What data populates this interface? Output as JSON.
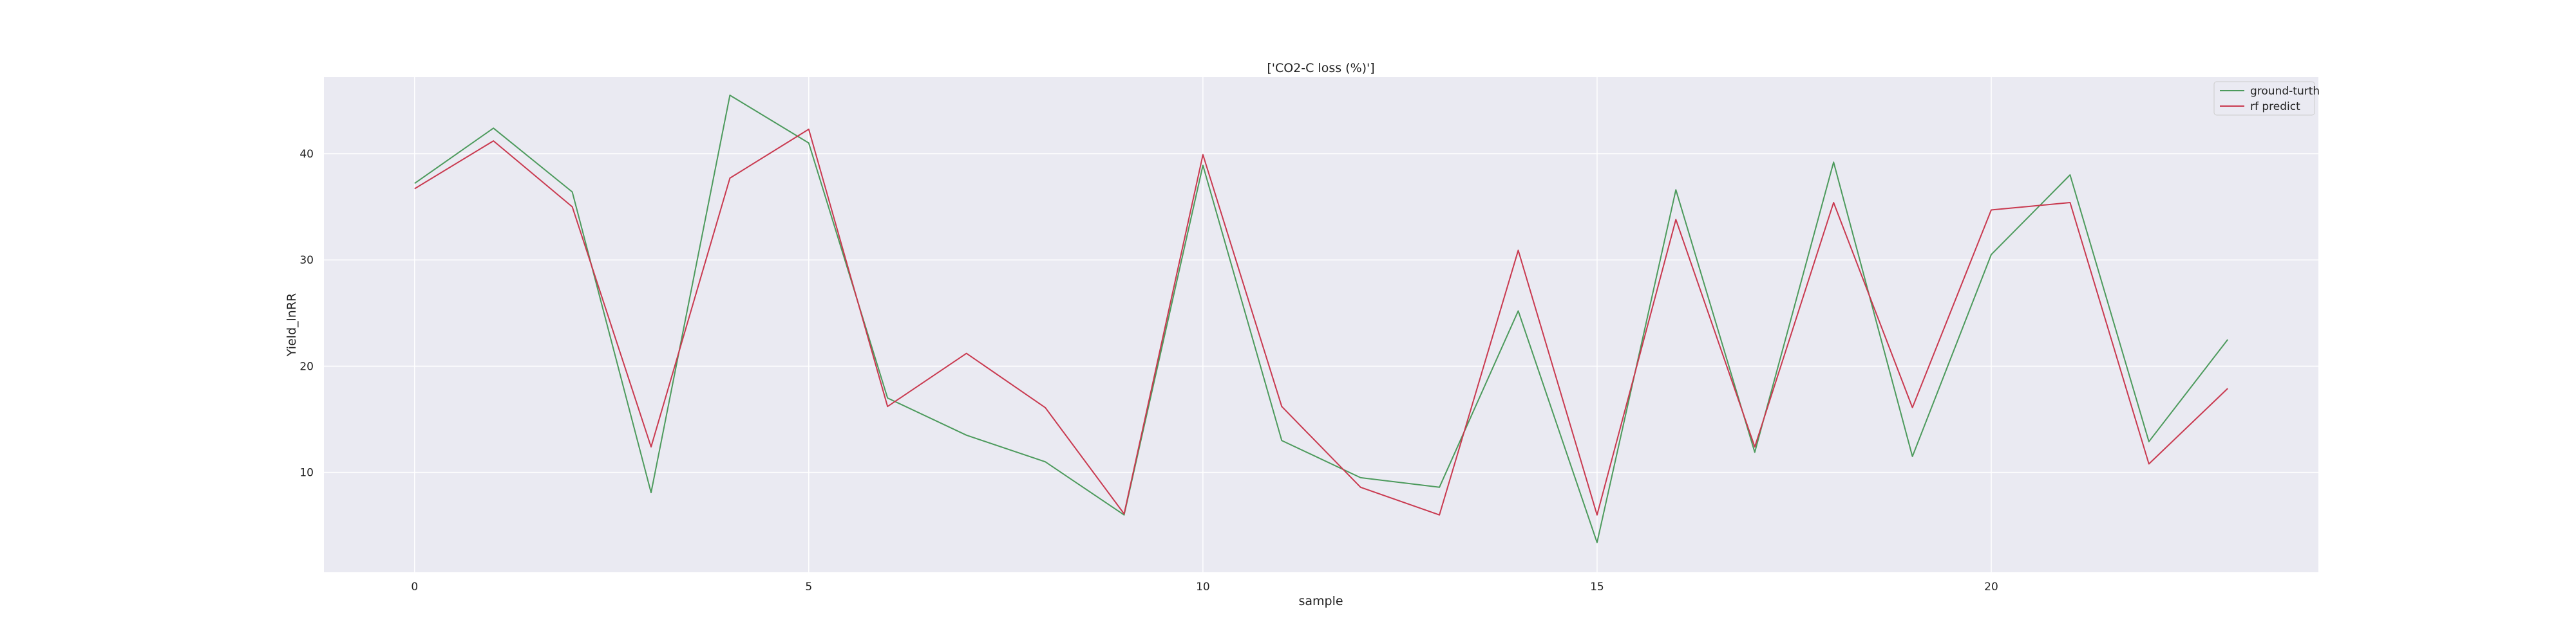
{
  "chart_data": {
    "type": "line",
    "title": "['CO2-C loss (%)']",
    "xlabel": "sample",
    "ylabel": "Yield_lnRR",
    "x": [
      0,
      1,
      2,
      3,
      4,
      5,
      6,
      7,
      8,
      9,
      10,
      11,
      12,
      13,
      14,
      15,
      16,
      17,
      18,
      19,
      20,
      21,
      22,
      23
    ],
    "xlim": [
      -1.15,
      24.15
    ],
    "ylim": [
      0.6,
      47.2
    ],
    "xticks": [
      0,
      5,
      10,
      15,
      20
    ],
    "yticks": [
      10,
      20,
      30,
      40
    ],
    "grid": true,
    "legend_position": "top-right",
    "series": [
      {
        "name": "ground-turth",
        "color": "#4c9a5c",
        "values": [
          37.2,
          42.4,
          36.4,
          8.1,
          45.5,
          41.0,
          17.0,
          13.5,
          11.0,
          6.0,
          38.9,
          13.0,
          9.5,
          8.6,
          25.2,
          3.4,
          36.6,
          11.9,
          39.2,
          11.5,
          30.5,
          38.0,
          12.9,
          22.5
        ]
      },
      {
        "name": "rf predict",
        "color": "#c9394f",
        "values": [
          36.7,
          41.2,
          35.0,
          12.4,
          37.7,
          42.3,
          16.2,
          21.2,
          16.1,
          6.1,
          39.9,
          16.2,
          8.6,
          6.0,
          30.9,
          6.0,
          33.8,
          12.4,
          35.4,
          16.1,
          34.7,
          35.4,
          10.8,
          17.9
        ]
      }
    ]
  }
}
